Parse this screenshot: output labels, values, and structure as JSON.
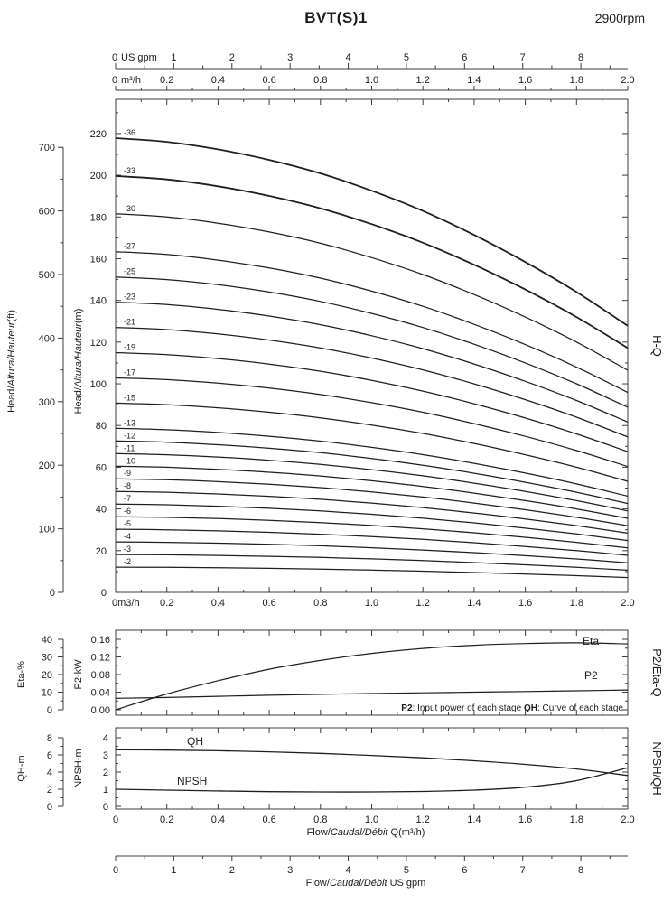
{
  "header": {
    "title": "BVT(S)1",
    "rpm": "2900rpm"
  },
  "colors": {
    "ink": "#1f1f1f",
    "axis": "#3c3c3c",
    "bg": "#ffffff"
  },
  "top_axes": {
    "gpm": {
      "zero": "0",
      "unit": "US gpm",
      "ticks": [
        1,
        2,
        3,
        4,
        5,
        6,
        7,
        8
      ]
    },
    "m3h": {
      "zero": "0",
      "unit": "m³/h",
      "ticks": [
        "0.2",
        "0.4",
        "0.6",
        "0.8",
        "1.0",
        "1.2",
        "1.4",
        "1.6",
        "1.8",
        "2.0"
      ]
    }
  },
  "chart_data": [
    {
      "id": "hq",
      "type": "line",
      "right_label": "H-Q",
      "x": [
        0,
        0.2,
        0.4,
        0.6,
        0.8,
        1.0,
        1.2,
        1.4,
        1.6,
        1.8,
        2.0
      ],
      "xlim": [
        0,
        2.0
      ],
      "x_zero_label": "0m3/h",
      "x_tick_labels": [
        "0.2",
        "0.4",
        "0.6",
        "0.8",
        "1.0",
        "1.2",
        "1.4",
        "1.6",
        "1.8",
        "2.0"
      ],
      "y_m": {
        "label_parts": [
          {
            "t": "Head/"
          },
          {
            "i": "Altura/Hauteur"
          },
          {
            "t": "(m)"
          }
        ],
        "ticks": [
          0,
          20,
          40,
          60,
          80,
          100,
          120,
          140,
          160,
          180,
          200,
          220
        ],
        "lim": [
          0,
          236.5
        ]
      },
      "y_ft": {
        "label_parts": [
          {
            "t": "Head/"
          },
          {
            "i": "Altura/Hauteur"
          },
          {
            "t": "(ft)"
          }
        ],
        "ticks": [
          0,
          100,
          200,
          300,
          400,
          500,
          600,
          700
        ]
      },
      "stages": [
        2,
        3,
        4,
        5,
        6,
        7,
        8,
        9,
        10,
        11,
        12,
        13,
        15,
        17,
        19,
        21,
        23,
        25,
        27,
        30,
        33,
        36
      ],
      "stage_label_prefix": "-",
      "single_stage_head_m": [
        6.05,
        6.0,
        5.9,
        5.76,
        5.58,
        5.35,
        5.08,
        4.76,
        4.4,
        4.0,
        3.55
      ]
    },
    {
      "id": "p2eta",
      "type": "line",
      "right_label": "P2/Eta-Q",
      "x": [
        0,
        0.2,
        0.4,
        0.6,
        0.8,
        1.0,
        1.2,
        1.4,
        1.6,
        1.8,
        2.0
      ],
      "eta": {
        "name": "Eta",
        "axis_label": "Eta-%",
        "ticks": [
          0,
          10,
          20,
          30,
          40
        ],
        "lim": [
          0,
          40
        ],
        "values": [
          0,
          9,
          16.5,
          23,
          28,
          32,
          34.8,
          36.6,
          37.6,
          38,
          37.4
        ]
      },
      "p2": {
        "name": "P2",
        "axis_label": "P2-kW",
        "tick_labels": [
          "0.00",
          "0.04",
          "0.08",
          "0.12",
          "0.16"
        ],
        "lim": [
          0,
          0.16
        ],
        "values": [
          0.026,
          0.028,
          0.0305,
          0.033,
          0.035,
          0.037,
          0.0385,
          0.04,
          0.0415,
          0.043,
          0.045
        ]
      },
      "note_parts": [
        {
          "b": "P2"
        },
        {
          "t": ": Input power of each stage  "
        },
        {
          "b": "QH"
        },
        {
          "t": ": Curve of each stage"
        }
      ]
    },
    {
      "id": "npsh_qh",
      "type": "line",
      "right_label": "NPSH/QH",
      "x": [
        0,
        0.2,
        0.4,
        0.6,
        0.8,
        1.0,
        1.2,
        1.4,
        1.6,
        1.8,
        2.0
      ],
      "x_tick_labels": [
        "0",
        "0.2",
        "0.4",
        "0.6",
        "0.8",
        "1.0",
        "1.2",
        "1.4",
        "1.6",
        "1.8",
        "2.0"
      ],
      "xlabel_parts": [
        {
          "t": "Flow/"
        },
        {
          "i": "Caudal/Débit"
        },
        {
          "t": " Q(m³/h)"
        }
      ],
      "qh": {
        "name": "QH",
        "axis_label": "QH-m",
        "ticks": [
          0,
          2,
          4,
          6,
          8
        ],
        "lim": [
          0,
          8
        ],
        "values": [
          6.6,
          6.56,
          6.48,
          6.36,
          6.18,
          5.94,
          5.66,
          5.32,
          4.9,
          4.36,
          3.6
        ]
      },
      "npsh": {
        "name": "NPSH",
        "axis_label": "NPSH-m",
        "ticks": [
          0,
          1,
          2,
          3,
          4
        ],
        "lim": [
          0,
          4
        ],
        "values": [
          1.0,
          0.95,
          0.9,
          0.86,
          0.84,
          0.84,
          0.87,
          0.95,
          1.12,
          1.5,
          2.25
        ]
      }
    }
  ],
  "bottom_axis": {
    "ticks": [
      0,
      1,
      2,
      3,
      4,
      5,
      6,
      7,
      8
    ],
    "label_parts": [
      {
        "t": "Flow/"
      },
      {
        "i": "Caudal/Débit"
      },
      {
        "t": "  US gpm"
      }
    ]
  }
}
